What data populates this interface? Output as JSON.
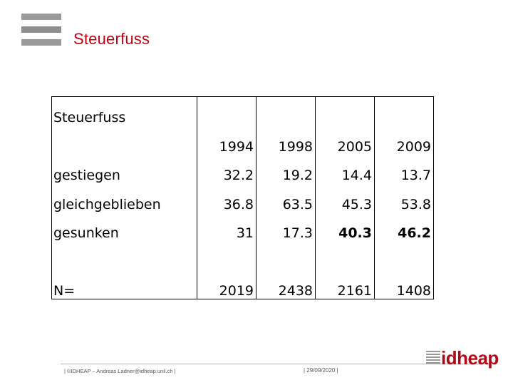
{
  "slide": {
    "title": "Steuerfuss"
  },
  "table": {
    "header_label": "Steuerfuss",
    "years": [
      "1994",
      "1998",
      "2005",
      "2009"
    ],
    "rows": [
      {
        "label": "gestiegen",
        "values": [
          "32.2",
          "19.2",
          "14.4",
          "13.7"
        ]
      },
      {
        "label": "gleichgeblieben",
        "values": [
          "36.8",
          "63.5",
          "45.3",
          "53.8"
        ]
      },
      {
        "label": "gesunken",
        "values": [
          "31",
          "17.3",
          "40.3",
          "46.2"
        ]
      }
    ],
    "n_label": "N=",
    "n_values": [
      "2019",
      "2438",
      "2161",
      "1408"
    ]
  },
  "footer": {
    "left": "| ©IDHEAP – Andreas.Ladner@idheap.unil.ch |",
    "date": "| 29/09/2020 |",
    "brand": "idheap"
  },
  "colors": {
    "accent": "#c0000f",
    "logo_grey": "#9a9a9a"
  },
  "icons": {
    "logo": "stacked-bars-logo-icon",
    "brand_stripes": "stripes-icon"
  }
}
